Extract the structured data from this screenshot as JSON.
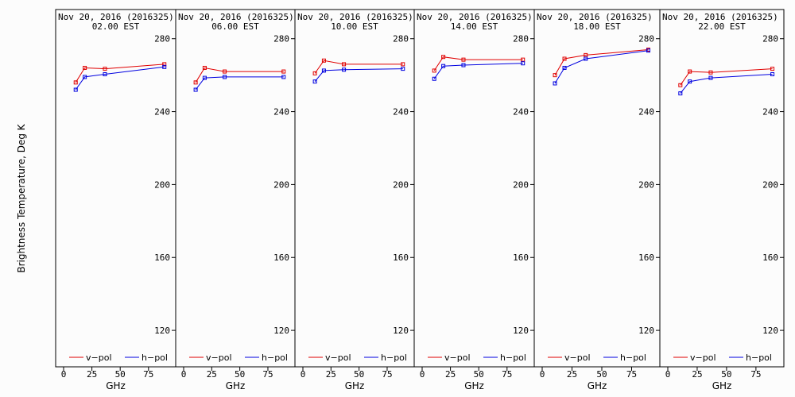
{
  "chart_data": {
    "type": "line",
    "xlabel": "GHz",
    "ylabel": "Brightness Temperature, Deg K",
    "xlim": [
      0,
      92
    ],
    "ylim": [
      100,
      296
    ],
    "xticks": [
      0,
      25,
      50,
      75,
      100
    ],
    "yticks": [
      120,
      160,
      200,
      240,
      280
    ],
    "legend": {
      "v": "v−pol",
      "h": "h−pol",
      "placement": "bottom"
    },
    "colors": {
      "v": "#e00000",
      "h": "#0000e0"
    },
    "x": [
      10.7,
      18.7,
      36.5,
      89.0
    ],
    "panels": [
      {
        "title": "Nov 20, 2016 (2016325)",
        "time": "02.00 EST",
        "series": [
          {
            "name": "v−pol",
            "values": [
              256,
              264,
              263.5,
              266
            ]
          },
          {
            "name": "h−pol",
            "values": [
              252,
              259,
              260.5,
              264.5
            ]
          }
        ]
      },
      {
        "title": "Nov 20, 2016 (2016325)",
        "time": "06.00 EST",
        "series": [
          {
            "name": "v−pol",
            "values": [
              256,
              264,
              262,
              262
            ]
          },
          {
            "name": "h−pol",
            "values": [
              252,
              258.5,
              259,
              259
            ]
          }
        ]
      },
      {
        "title": "Nov 20, 2016 (2016325)",
        "time": "10.00 EST",
        "series": [
          {
            "name": "v−pol",
            "values": [
              261,
              268,
              266,
              266
            ]
          },
          {
            "name": "h−pol",
            "values": [
              256.5,
              262.5,
              263,
              263.5
            ]
          }
        ]
      },
      {
        "title": "Nov 20, 2016 (2016325)",
        "time": "14.00 EST",
        "series": [
          {
            "name": "v−pol",
            "values": [
              262.5,
              270,
              268.5,
              268.5
            ]
          },
          {
            "name": "h−pol",
            "values": [
              258,
              265,
              265.5,
              266.5
            ]
          }
        ]
      },
      {
        "title": "Nov 20, 2016 (2016325)",
        "time": "18.00 EST",
        "series": [
          {
            "name": "v−pol",
            "values": [
              260,
              269,
              271,
              274
            ]
          },
          {
            "name": "h−pol",
            "values": [
              255.5,
              264,
              269,
              273.5
            ]
          }
        ]
      },
      {
        "title": "Nov 20, 2016 (2016325)",
        "time": "22.00 EST",
        "series": [
          {
            "name": "v−pol",
            "values": [
              254.5,
              262,
              261.5,
              263.5
            ]
          },
          {
            "name": "h−pol",
            "values": [
              250,
              256.5,
              258.5,
              260.5
            ]
          }
        ]
      }
    ]
  }
}
